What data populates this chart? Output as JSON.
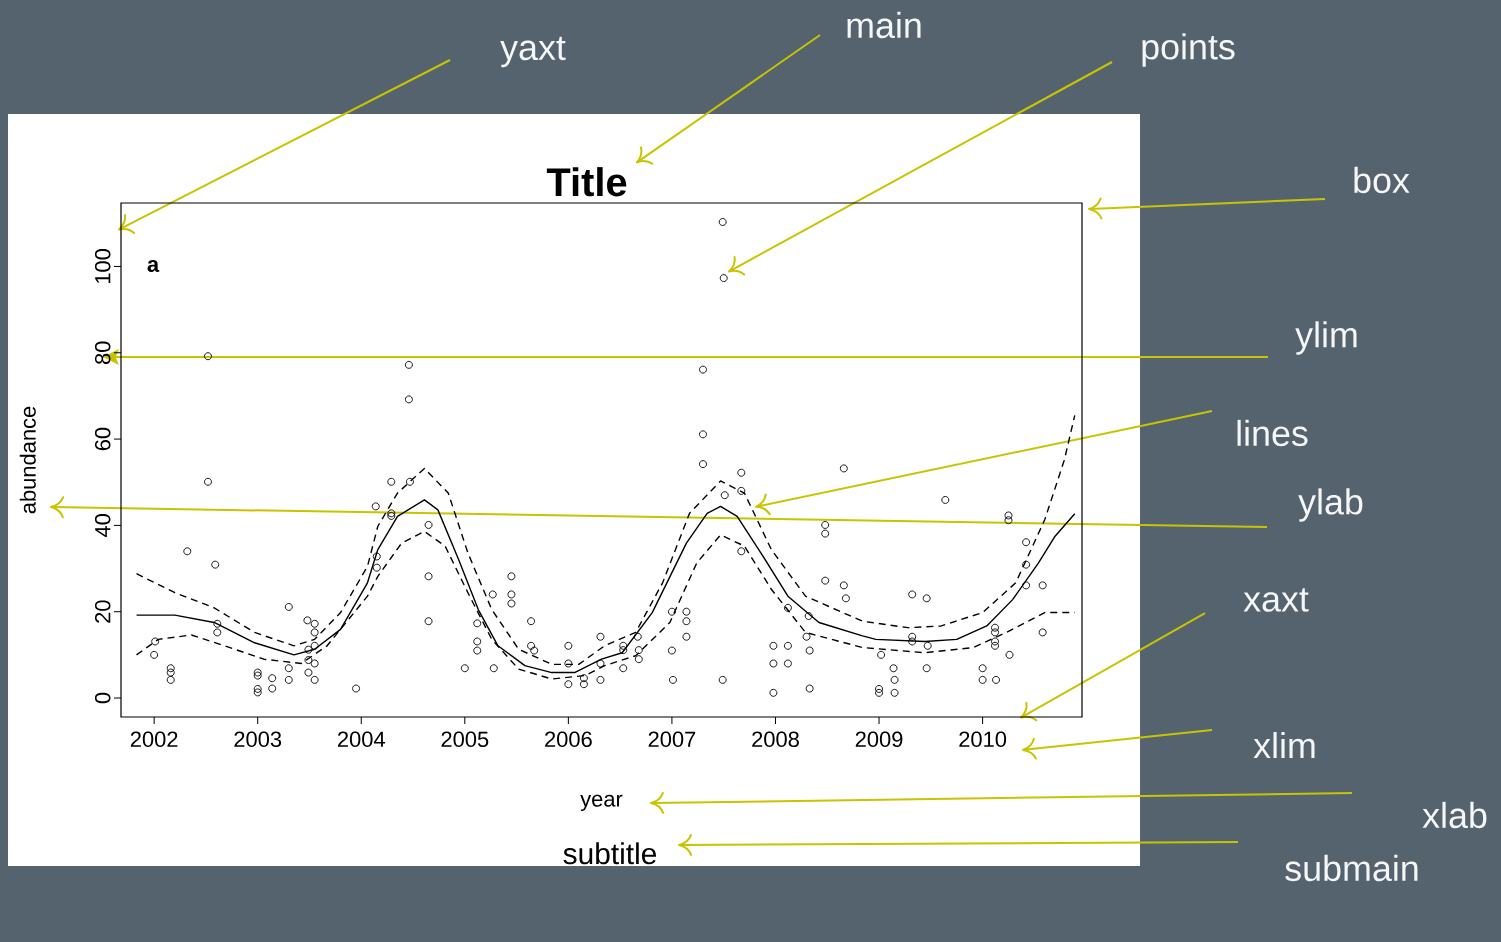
{
  "chart_data": {
    "type": "scatter",
    "title": "Title",
    "subtitle": "subtitle",
    "xlabel": "year",
    "ylabel": "abundance",
    "annotations": [
      "a",
      "yaxt",
      "main",
      "points",
      "box",
      "ylim",
      "lines",
      "ylab",
      "xaxt",
      "xlim",
      "xlab",
      "submain"
    ],
    "xlim": [
      2001.68,
      2010.96
    ],
    "xticks": [
      2002,
      2003,
      2004,
      2005,
      2006,
      2007,
      2008,
      2009,
      2010
    ],
    "ylim": [
      -4.4,
      114.7
    ],
    "yticks": [
      0,
      20,
      40,
      60,
      80,
      100
    ],
    "series": [
      {
        "type": "scatter",
        "color": "#000000",
        "marker": "circle",
        "x": [
          2002.01,
          2002.0,
          2002.16,
          2002.16,
          2002.16,
          2002.32,
          2002.52,
          2002.52,
          2002.59,
          2002.61,
          2002.61,
          2003.0,
          2003.0,
          2003.0,
          2003.0,
          2003.14,
          2003.14,
          2003.3,
          2003.3,
          2003.3,
          2003.48,
          2003.49,
          2003.49,
          2003.49,
          2003.55,
          2003.55,
          2003.55,
          2003.55,
          2003.55,
          2003.95,
          2004.14,
          2004.15,
          2004.15,
          2004.29,
          2004.29,
          2004.29,
          2004.46,
          2004.46,
          2004.47,
          2004.65,
          2004.65,
          2004.65,
          2005.0,
          2005.12,
          2005.12,
          2005.12,
          2005.27,
          2005.28,
          2005.45,
          2005.45,
          2005.45,
          2005.64,
          2005.64,
          2005.67,
          2006.0,
          2006.0,
          2006.0,
          2006.15,
          2006.15,
          2006.31,
          2006.31,
          2006.31,
          2006.53,
          2006.53,
          2006.53,
          2006.67,
          2006.68,
          2006.68,
          2007.0,
          2007.0,
          2007.01,
          2007.14,
          2007.14,
          2007.14,
          2007.3,
          2007.3,
          2007.3,
          2007.49,
          2007.5,
          2007.51,
          2007.49,
          2007.67,
          2007.67,
          2007.67,
          2007.98,
          2007.98,
          2007.98,
          2008.12,
          2008.12,
          2008.12,
          2008.32,
          2008.3,
          2008.33,
          2008.33,
          2008.48,
          2008.48,
          2008.48,
          2008.66,
          2008.66,
          2008.68,
          2009.02,
          2009.0,
          2009.0,
          2009.14,
          2009.15,
          2009.15,
          2009.32,
          2009.46,
          2009.32,
          2009.32,
          2009.47,
          2009.46,
          2009.64,
          2010.0,
          2010.0,
          2010.13,
          2010.12,
          2010.12,
          2010.12,
          2010.12,
          2010.25,
          2010.25,
          2010.26,
          2010.42,
          2010.42,
          2010.42,
          2010.58,
          2010.58
        ],
        "values": [
          13.1,
          10.0,
          6.9,
          5.9,
          4.2,
          34.0,
          79.2,
          50.1,
          30.9,
          17.2,
          15.2,
          5.9,
          5.2,
          2.1,
          1.3,
          4.6,
          2.2,
          21.1,
          6.9,
          4.2,
          18.0,
          11.2,
          8.8,
          5.9,
          17.2,
          15.2,
          12.1,
          8.0,
          4.2,
          2.2,
          44.4,
          32.8,
          30.2,
          50.1,
          42.8,
          42.2,
          77.2,
          69.2,
          50.1,
          40.1,
          28.2,
          17.8,
          6.9,
          17.3,
          13.1,
          11.0,
          24.0,
          6.9,
          28.2,
          24.0,
          21.9,
          17.8,
          12.1,
          11.0,
          12.1,
          8.0,
          3.2,
          4.6,
          3.2,
          14.2,
          8.0,
          4.2,
          12.1,
          11.1,
          6.9,
          14.2,
          11.1,
          9.0,
          20.0,
          11.0,
          4.2,
          20.0,
          17.8,
          14.2,
          76.1,
          61.1,
          54.2,
          110.3,
          97.3,
          47.0,
          4.2,
          52.2,
          48.0,
          34.0,
          12.1,
          8.0,
          1.2,
          20.9,
          12.1,
          8.0,
          19.0,
          14.2,
          11.0,
          2.2,
          40.1,
          38.1,
          27.2,
          53.2,
          26.1,
          23.1,
          10.0,
          2.1,
          1.2,
          6.9,
          4.2,
          1.2,
          24.0,
          23.1,
          14.2,
          13.1,
          12.1,
          6.9,
          45.9,
          6.9,
          4.2,
          4.2,
          16.3,
          15.2,
          13.1,
          12.1,
          42.3,
          41.2,
          10.0,
          36.1,
          30.9,
          26.1,
          26.1,
          15.2
        ]
      },
      {
        "type": "line",
        "color": "#000000",
        "marker": "none",
        "line_style": "solid",
        "x": [
          2001.83,
          2002.2,
          2002.58,
          2002.97,
          2003.35,
          2003.55,
          2003.8,
          2004.06,
          2004.16,
          2004.35,
          2004.61,
          2004.74,
          2004.94,
          2005.13,
          2005.32,
          2005.58,
          2005.84,
          2006.06,
          2006.32,
          2006.52,
          2006.81,
          2007.14,
          2007.34,
          2007.47,
          2007.63,
          2007.86,
          2008.12,
          2008.42,
          2008.84,
          2008.97,
          2009.44,
          2009.75,
          2010.04,
          2010.29,
          2010.54,
          2010.7,
          2010.89
        ],
        "values": [
          19.2,
          19.2,
          17.5,
          12.8,
          10.0,
          11.3,
          15.9,
          26.7,
          34.4,
          42.1,
          45.9,
          43.6,
          32.1,
          20.5,
          12.1,
          7.5,
          5.9,
          5.9,
          9.0,
          10.5,
          19.8,
          35.9,
          42.8,
          44.4,
          42.1,
          33.6,
          23.6,
          17.5,
          14.4,
          13.6,
          13.1,
          13.6,
          16.7,
          22.8,
          31.3,
          37.5,
          42.7
        ]
      },
      {
        "type": "line",
        "color": "#000000",
        "marker": "none",
        "line_style": "dashed",
        "x": [
          2001.83,
          2002.2,
          2002.58,
          2002.97,
          2003.35,
          2003.55,
          2003.8,
          2004.06,
          2004.16,
          2004.35,
          2004.61,
          2004.84,
          2005.03,
          2005.26,
          2005.52,
          2005.84,
          2006.1,
          2006.35,
          2006.65,
          2006.91,
          2007.17,
          2007.47,
          2007.7,
          2007.96,
          2008.29,
          2008.84,
          2009.28,
          2009.6,
          2010.0,
          2010.32,
          2010.6,
          2010.79,
          2010.89
        ],
        "values": [
          28.8,
          24.4,
          20.9,
          15.2,
          12.1,
          13.6,
          19.8,
          30.5,
          39.8,
          47.5,
          53.2,
          47.5,
          33.6,
          20.5,
          11.3,
          7.8,
          7.8,
          12.1,
          15.2,
          26.7,
          42.8,
          50.3,
          47.5,
          34.4,
          23.6,
          17.8,
          16.3,
          16.7,
          19.8,
          26.7,
          41.3,
          55.2,
          65.5
        ]
      },
      {
        "type": "line",
        "color": "#000000",
        "marker": "none",
        "line_style": "dashed",
        "x": [
          2001.83,
          2002.04,
          2002.36,
          2002.68,
          2003.06,
          2003.42,
          2003.67,
          2004.06,
          2004.16,
          2004.39,
          2004.61,
          2004.81,
          2005.03,
          2005.26,
          2005.52,
          2005.84,
          2006.16,
          2006.35,
          2006.65,
          2006.98,
          2007.24,
          2007.47,
          2007.7,
          2007.96,
          2008.29,
          2008.84,
          2009.44,
          2009.91,
          2010.23,
          2010.6,
          2010.89
        ],
        "values": [
          10.0,
          13.6,
          14.6,
          12.1,
          9.0,
          8.0,
          12.1,
          23.6,
          28.2,
          35.9,
          38.6,
          35.2,
          24.4,
          13.6,
          6.7,
          4.4,
          5.2,
          7.5,
          9.8,
          17.5,
          31.3,
          37.8,
          35.2,
          25.2,
          15.2,
          11.7,
          10.5,
          11.7,
          15.2,
          19.8,
          19.8
        ]
      }
    ]
  }
}
